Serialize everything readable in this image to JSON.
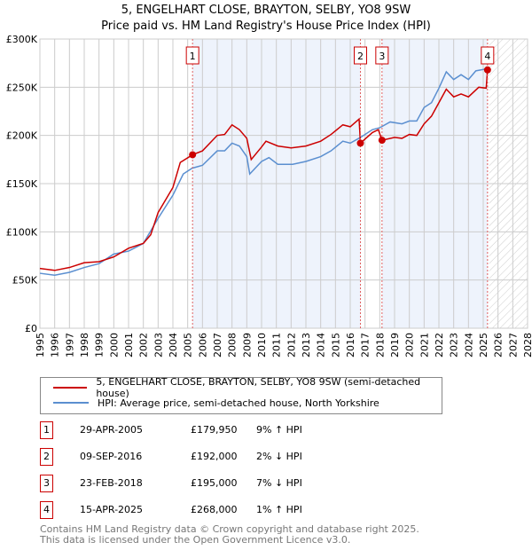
{
  "chart_data": {
    "type": "line",
    "title": "5, ENGELHART CLOSE, BRAYTON, SELBY, YO8 9SW",
    "subtitle": "Price paid vs. HM Land Registry's House Price Index (HPI)",
    "xlim": [
      1995,
      2028
    ],
    "ylim": [
      0,
      300000
    ],
    "x_ticks": [
      "1995",
      "1996",
      "1997",
      "1998",
      "1999",
      "2000",
      "2001",
      "2002",
      "2003",
      "2004",
      "2005",
      "2006",
      "2007",
      "2008",
      "2009",
      "2010",
      "2011",
      "2012",
      "2013",
      "2014",
      "2015",
      "2016",
      "2017",
      "2018",
      "2019",
      "2020",
      "2021",
      "2022",
      "2023",
      "2024",
      "2025",
      "2026",
      "2027",
      "2028"
    ],
    "y_ticks": [
      {
        "v": 0,
        "label": "£0"
      },
      {
        "v": 50000,
        "label": "£50K"
      },
      {
        "v": 100000,
        "label": "£100K"
      },
      {
        "v": 150000,
        "label": "£150K"
      },
      {
        "v": 200000,
        "label": "£200K"
      },
      {
        "v": 250000,
        "label": "£250K"
      },
      {
        "v": 300000,
        "label": "£300K"
      }
    ],
    "grid": true,
    "forecast_hatch_from": 2025.4,
    "series": [
      {
        "name": "5, ENGELHART CLOSE, BRAYTON, SELBY, YO8 9SW (semi-detached house)",
        "color": "#cc0000",
        "points": [
          [
            1995,
            62000
          ],
          [
            1996,
            60000
          ],
          [
            1997,
            63000
          ],
          [
            1998,
            68000
          ],
          [
            1999,
            69000
          ],
          [
            2000,
            74000
          ],
          [
            2001,
            83000
          ],
          [
            2002,
            88000
          ],
          [
            2002.5,
            97000
          ],
          [
            2003,
            120000
          ],
          [
            2004,
            146000
          ],
          [
            2004.5,
            172000
          ],
          [
            2005.33,
            179950
          ],
          [
            2006,
            184000
          ],
          [
            2007,
            200000
          ],
          [
            2007.5,
            201000
          ],
          [
            2008,
            211000
          ],
          [
            2008.5,
            206000
          ],
          [
            2009,
            197000
          ],
          [
            2009.3,
            175000
          ],
          [
            2010,
            188000
          ],
          [
            2010.3,
            194000
          ],
          [
            2011.1,
            189000
          ],
          [
            2012,
            187000
          ],
          [
            2013,
            189000
          ],
          [
            2014,
            194000
          ],
          [
            2014.7,
            201000
          ],
          [
            2015.5,
            211000
          ],
          [
            2016,
            209000
          ],
          [
            2016.6,
            217000
          ],
          [
            2016.69,
            192000
          ],
          [
            2017.5,
            203000
          ],
          [
            2017.9,
            206000
          ],
          [
            2018.15,
            195000
          ],
          [
            2019,
            198000
          ],
          [
            2019.5,
            197000
          ],
          [
            2020,
            201000
          ],
          [
            2020.5,
            200000
          ],
          [
            2021,
            212000
          ],
          [
            2021.5,
            220000
          ],
          [
            2022,
            234000
          ],
          [
            2022.5,
            248000
          ],
          [
            2023,
            240000
          ],
          [
            2023.5,
            243000
          ],
          [
            2024,
            240000
          ],
          [
            2024.7,
            250000
          ],
          [
            2025.2,
            249000
          ],
          [
            2025.29,
            268000
          ]
        ]
      },
      {
        "name": "HPI: Average price, semi-detached house, North Yorkshire",
        "color": "#5b8fd0",
        "points": [
          [
            1995,
            57000
          ],
          [
            1996,
            55000
          ],
          [
            1997,
            58000
          ],
          [
            1998,
            63000
          ],
          [
            1999,
            67000
          ],
          [
            2000,
            77000
          ],
          [
            2001,
            80000
          ],
          [
            2002,
            88000
          ],
          [
            2003,
            114000
          ],
          [
            2004,
            138000
          ],
          [
            2004.7,
            160000
          ],
          [
            2005.3,
            166000
          ],
          [
            2006,
            169000
          ],
          [
            2007,
            184000
          ],
          [
            2007.5,
            184000
          ],
          [
            2008,
            192000
          ],
          [
            2008.5,
            189000
          ],
          [
            2009,
            178000
          ],
          [
            2009.2,
            160000
          ],
          [
            2010,
            173000
          ],
          [
            2010.5,
            177000
          ],
          [
            2011.1,
            170000
          ],
          [
            2012.1,
            170000
          ],
          [
            2013,
            173000
          ],
          [
            2014,
            178000
          ],
          [
            2014.7,
            184000
          ],
          [
            2015.5,
            194000
          ],
          [
            2016,
            192000
          ],
          [
            2016.7,
            198000
          ],
          [
            2017.5,
            206000
          ],
          [
            2018,
            208000
          ],
          [
            2018.7,
            214000
          ],
          [
            2019.5,
            212000
          ],
          [
            2020,
            215000
          ],
          [
            2020.5,
            215000
          ],
          [
            2021,
            229000
          ],
          [
            2021.5,
            234000
          ],
          [
            2022,
            249000
          ],
          [
            2022.5,
            266000
          ],
          [
            2023,
            258000
          ],
          [
            2023.5,
            263000
          ],
          [
            2024,
            258000
          ],
          [
            2024.5,
            267000
          ],
          [
            2025.2,
            269000
          ]
        ]
      }
    ],
    "sales": [
      {
        "n": "1",
        "x": 2005.33,
        "y": 179950,
        "date": "29-APR-2005",
        "price": "£179,950",
        "hpi": "9% ↑ HPI"
      },
      {
        "n": "2",
        "x": 2016.69,
        "y": 192000,
        "date": "09-SEP-2016",
        "price": "£192,000",
        "hpi": "2% ↓ HPI"
      },
      {
        "n": "3",
        "x": 2018.15,
        "y": 195000,
        "date": "23-FEB-2018",
        "price": "£195,000",
        "hpi": "7% ↓ HPI"
      },
      {
        "n": "4",
        "x": 2025.29,
        "y": 268000,
        "date": "15-APR-2025",
        "price": "£268,000",
        "hpi": "1% ↑ HPI"
      }
    ]
  },
  "footer": {
    "line1": "Contains HM Land Registry data © Crown copyright and database right 2025.",
    "line2": "This data is licensed under the Open Government Licence v3.0."
  }
}
